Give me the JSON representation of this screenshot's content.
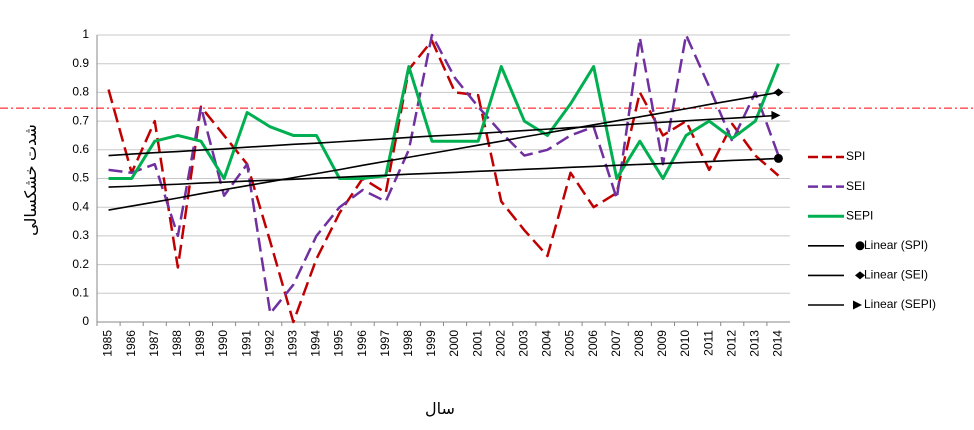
{
  "chart_data": {
    "type": "line",
    "y_axis_label": "شدت خشکسالی",
    "x_axis_label": "سال",
    "categories": [
      "1985",
      "1986",
      "1987",
      "1988",
      "1989",
      "1990",
      "1991",
      "1992",
      "1993",
      "1994",
      "1995",
      "1996",
      "1997",
      "1998",
      "1999",
      "2000",
      "2001",
      "2002",
      "2003",
      "2004",
      "2005",
      "2006",
      "2007",
      "2008",
      "2009",
      "2010",
      "2011",
      "2012",
      "2013",
      "2014"
    ],
    "series": [
      {
        "name": "SPI",
        "color": "#c00000",
        "style": "dashed",
        "width": 2.5,
        "values": [
          0.81,
          0.52,
          0.7,
          0.19,
          0.75,
          0.65,
          0.55,
          0.28,
          0.0,
          0.22,
          0.38,
          0.5,
          0.45,
          0.88,
          0.98,
          0.8,
          0.79,
          0.42,
          0.32,
          0.23,
          0.52,
          0.4,
          0.45,
          0.8,
          0.65,
          0.7,
          0.53,
          0.69,
          0.58,
          0.51
        ]
      },
      {
        "name": "SEI",
        "color": "#7030a0",
        "style": "dashed",
        "width": 2.5,
        "values": [
          0.53,
          0.52,
          0.55,
          0.3,
          0.75,
          0.44,
          0.55,
          0.03,
          0.13,
          0.3,
          0.4,
          0.46,
          0.42,
          0.6,
          1.0,
          0.85,
          0.75,
          0.66,
          0.58,
          0.6,
          0.65,
          0.68,
          0.43,
          0.99,
          0.55,
          1.0,
          0.82,
          0.63,
          0.8,
          0.58
        ]
      },
      {
        "name": "SEPI",
        "color": "#00b050",
        "style": "solid",
        "width": 3,
        "values": [
          0.5,
          0.5,
          0.63,
          0.65,
          0.63,
          0.5,
          0.73,
          0.68,
          0.65,
          0.65,
          0.5,
          0.5,
          0.51,
          0.89,
          0.63,
          0.63,
          0.63,
          0.89,
          0.7,
          0.65,
          0.76,
          0.89,
          0.5,
          0.63,
          0.5,
          0.65,
          0.7,
          0.64,
          0.7,
          0.9
        ]
      },
      {
        "name": "Linear (SPI)",
        "color": "#000000",
        "style": "solid",
        "width": 1.6,
        "marker": "circle",
        "values": [
          0.47,
          0.473,
          0.477,
          0.48,
          0.484,
          0.487,
          0.491,
          0.494,
          0.497,
          0.501,
          0.504,
          0.508,
          0.511,
          0.515,
          0.518,
          0.521,
          0.525,
          0.528,
          0.532,
          0.535,
          0.539,
          0.542,
          0.546,
          0.549,
          0.552,
          0.556,
          0.559,
          0.563,
          0.566,
          0.57
        ]
      },
      {
        "name": "Linear (SEI)",
        "color": "#000000",
        "style": "solid",
        "width": 1.6,
        "marker": "diamond",
        "values": [
          0.39,
          0.404,
          0.418,
          0.432,
          0.447,
          0.461,
          0.475,
          0.489,
          0.503,
          0.517,
          0.531,
          0.546,
          0.56,
          0.574,
          0.588,
          0.602,
          0.616,
          0.63,
          0.645,
          0.659,
          0.673,
          0.687,
          0.701,
          0.715,
          0.729,
          0.743,
          0.758,
          0.772,
          0.786,
          0.8
        ]
      },
      {
        "name": "Linear (SEPI)",
        "color": "#000000",
        "style": "solid",
        "width": 1.6,
        "marker": "arrow",
        "values": [
          0.58,
          0.585,
          0.59,
          0.594,
          0.599,
          0.604,
          0.609,
          0.614,
          0.619,
          0.623,
          0.628,
          0.633,
          0.638,
          0.643,
          0.648,
          0.652,
          0.657,
          0.662,
          0.667,
          0.672,
          0.677,
          0.681,
          0.686,
          0.691,
          0.696,
          0.701,
          0.706,
          0.71,
          0.715,
          0.72
        ]
      }
    ],
    "reference_line": {
      "value": 0.745,
      "color": "#ff0000"
    },
    "ylim": [
      0,
      1
    ],
    "yticks": [
      0,
      0.1,
      0.2,
      0.3,
      0.4,
      0.5,
      0.6,
      0.7,
      0.8,
      0.9,
      1
    ],
    "grid": true
  }
}
